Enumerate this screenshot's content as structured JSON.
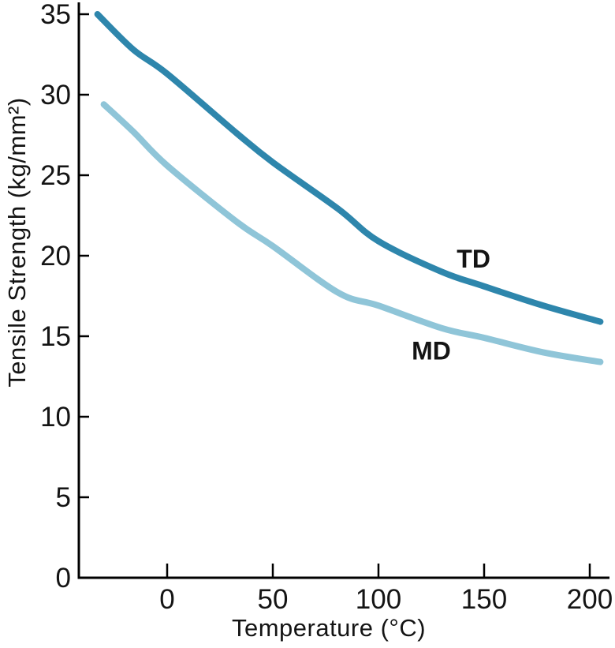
{
  "chart_data": {
    "type": "line",
    "title": "",
    "xlabel": "Temperature (°C)",
    "ylabel": "Tensile Strength (kg/mm²)",
    "xlim": [
      -42,
      209
    ],
    "ylim": [
      0,
      36
    ],
    "x_ticks": [
      0,
      50,
      100,
      150,
      200
    ],
    "y_ticks": [
      0,
      5,
      10,
      15,
      20,
      25,
      30,
      35
    ],
    "grid": false,
    "legend_position": "inline-annotations",
    "axis_color": "#000000",
    "text_color": "#141414",
    "series": [
      {
        "name": "TD",
        "color": "#2e86ac",
        "label_anchor": {
          "x": 145,
          "y": 19.8
        },
        "points": [
          [
            -33,
            35.0
          ],
          [
            -16,
            32.8
          ],
          [
            0,
            31.3
          ],
          [
            33,
            27.6
          ],
          [
            50,
            25.8
          ],
          [
            81,
            22.9
          ],
          [
            100,
            20.9
          ],
          [
            130,
            19.0
          ],
          [
            150,
            18.1
          ],
          [
            178,
            16.9
          ],
          [
            205,
            15.9
          ]
        ]
      },
      {
        "name": "MD",
        "color": "#8fc5d8",
        "label_anchor": {
          "x": 125,
          "y": 14.1
        },
        "points": [
          [
            -30,
            29.4
          ],
          [
            -16,
            27.7
          ],
          [
            0,
            25.6
          ],
          [
            33,
            22.1
          ],
          [
            50,
            20.6
          ],
          [
            81,
            17.7
          ],
          [
            100,
            16.9
          ],
          [
            130,
            15.5
          ],
          [
            150,
            14.9
          ],
          [
            178,
            14.0
          ],
          [
            205,
            13.4
          ]
        ]
      }
    ]
  }
}
